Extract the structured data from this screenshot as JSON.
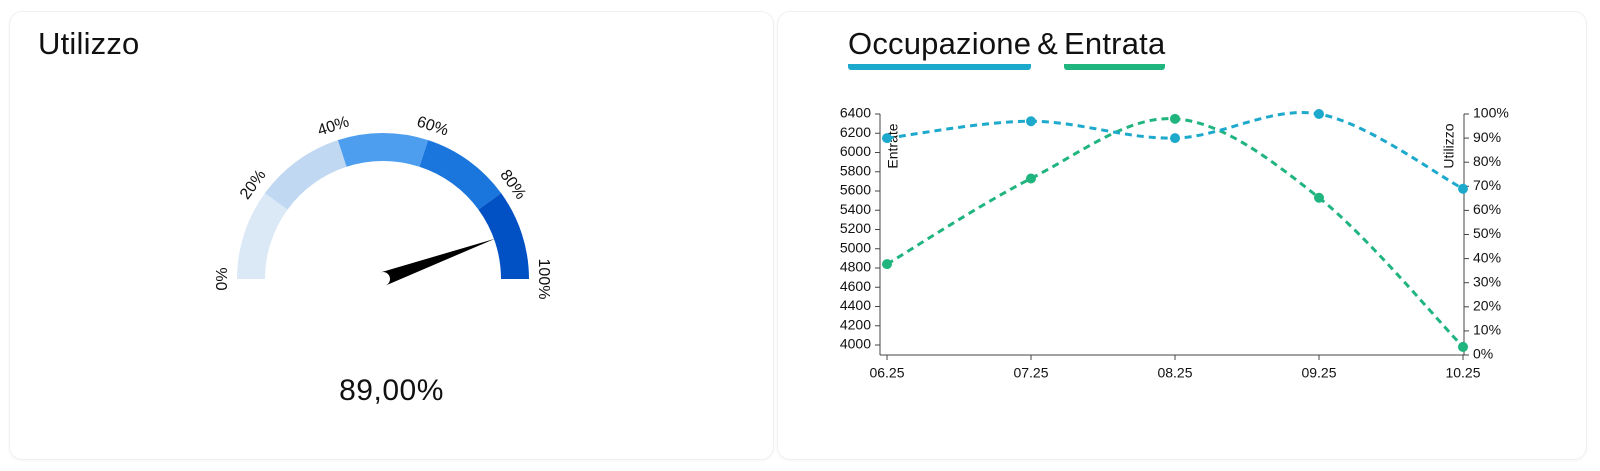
{
  "utilizzo_card": {
    "title": "Utilizzo",
    "value_label": "89,00%",
    "chart_data": {
      "type": "gauge",
      "value": 89,
      "min": 0,
      "max": 100,
      "tick_labels": [
        "0%",
        "20%",
        "40%",
        "60%",
        "80%",
        "100%"
      ],
      "bands": [
        {
          "from": 0,
          "to": 20,
          "color": "#dbe8f6"
        },
        {
          "from": 20,
          "to": 40,
          "color": "#c0d8f1"
        },
        {
          "from": 40,
          "to": 60,
          "color": "#4d9eee"
        },
        {
          "from": 60,
          "to": 80,
          "color": "#1a75dd"
        },
        {
          "from": 80,
          "to": 100,
          "color": "#0150c4"
        }
      ],
      "needle_color": "#000000"
    }
  },
  "occupazione_card": {
    "title_part1": "Occupazione",
    "title_amp": "&",
    "title_part2": "Entrata",
    "colors": {
      "occupazione": "#1da9cc",
      "entrata": "#20b47f"
    },
    "chart_data": {
      "type": "line",
      "x": [
        "06.25",
        "07.25",
        "08.25",
        "09.25",
        "10.25"
      ],
      "series": [
        {
          "name": "Entrate",
          "axis": "left",
          "color": "#20b47f",
          "values": [
            4840,
            5730,
            6350,
            5530,
            3980
          ]
        },
        {
          "name": "Utilizzo",
          "axis": "right",
          "color": "#1da9cc",
          "values": [
            90,
            97,
            90,
            100,
            69
          ]
        }
      ],
      "y_left": {
        "label": "Entrate",
        "range": [
          4000,
          6400
        ],
        "ticks": [
          "4000",
          "4200",
          "4400",
          "4600",
          "4800",
          "5000",
          "5200",
          "5400",
          "5600",
          "5800",
          "6000",
          "6200",
          "6400"
        ]
      },
      "y_right": {
        "label": "Utilizzo",
        "range": [
          0,
          100
        ],
        "ticks": [
          "0%",
          "10%",
          "20%",
          "30%",
          "40%",
          "50%",
          "60%",
          "70%",
          "80%",
          "90%",
          "100%"
        ]
      },
      "line_style": "dashed",
      "grid": false
    }
  }
}
